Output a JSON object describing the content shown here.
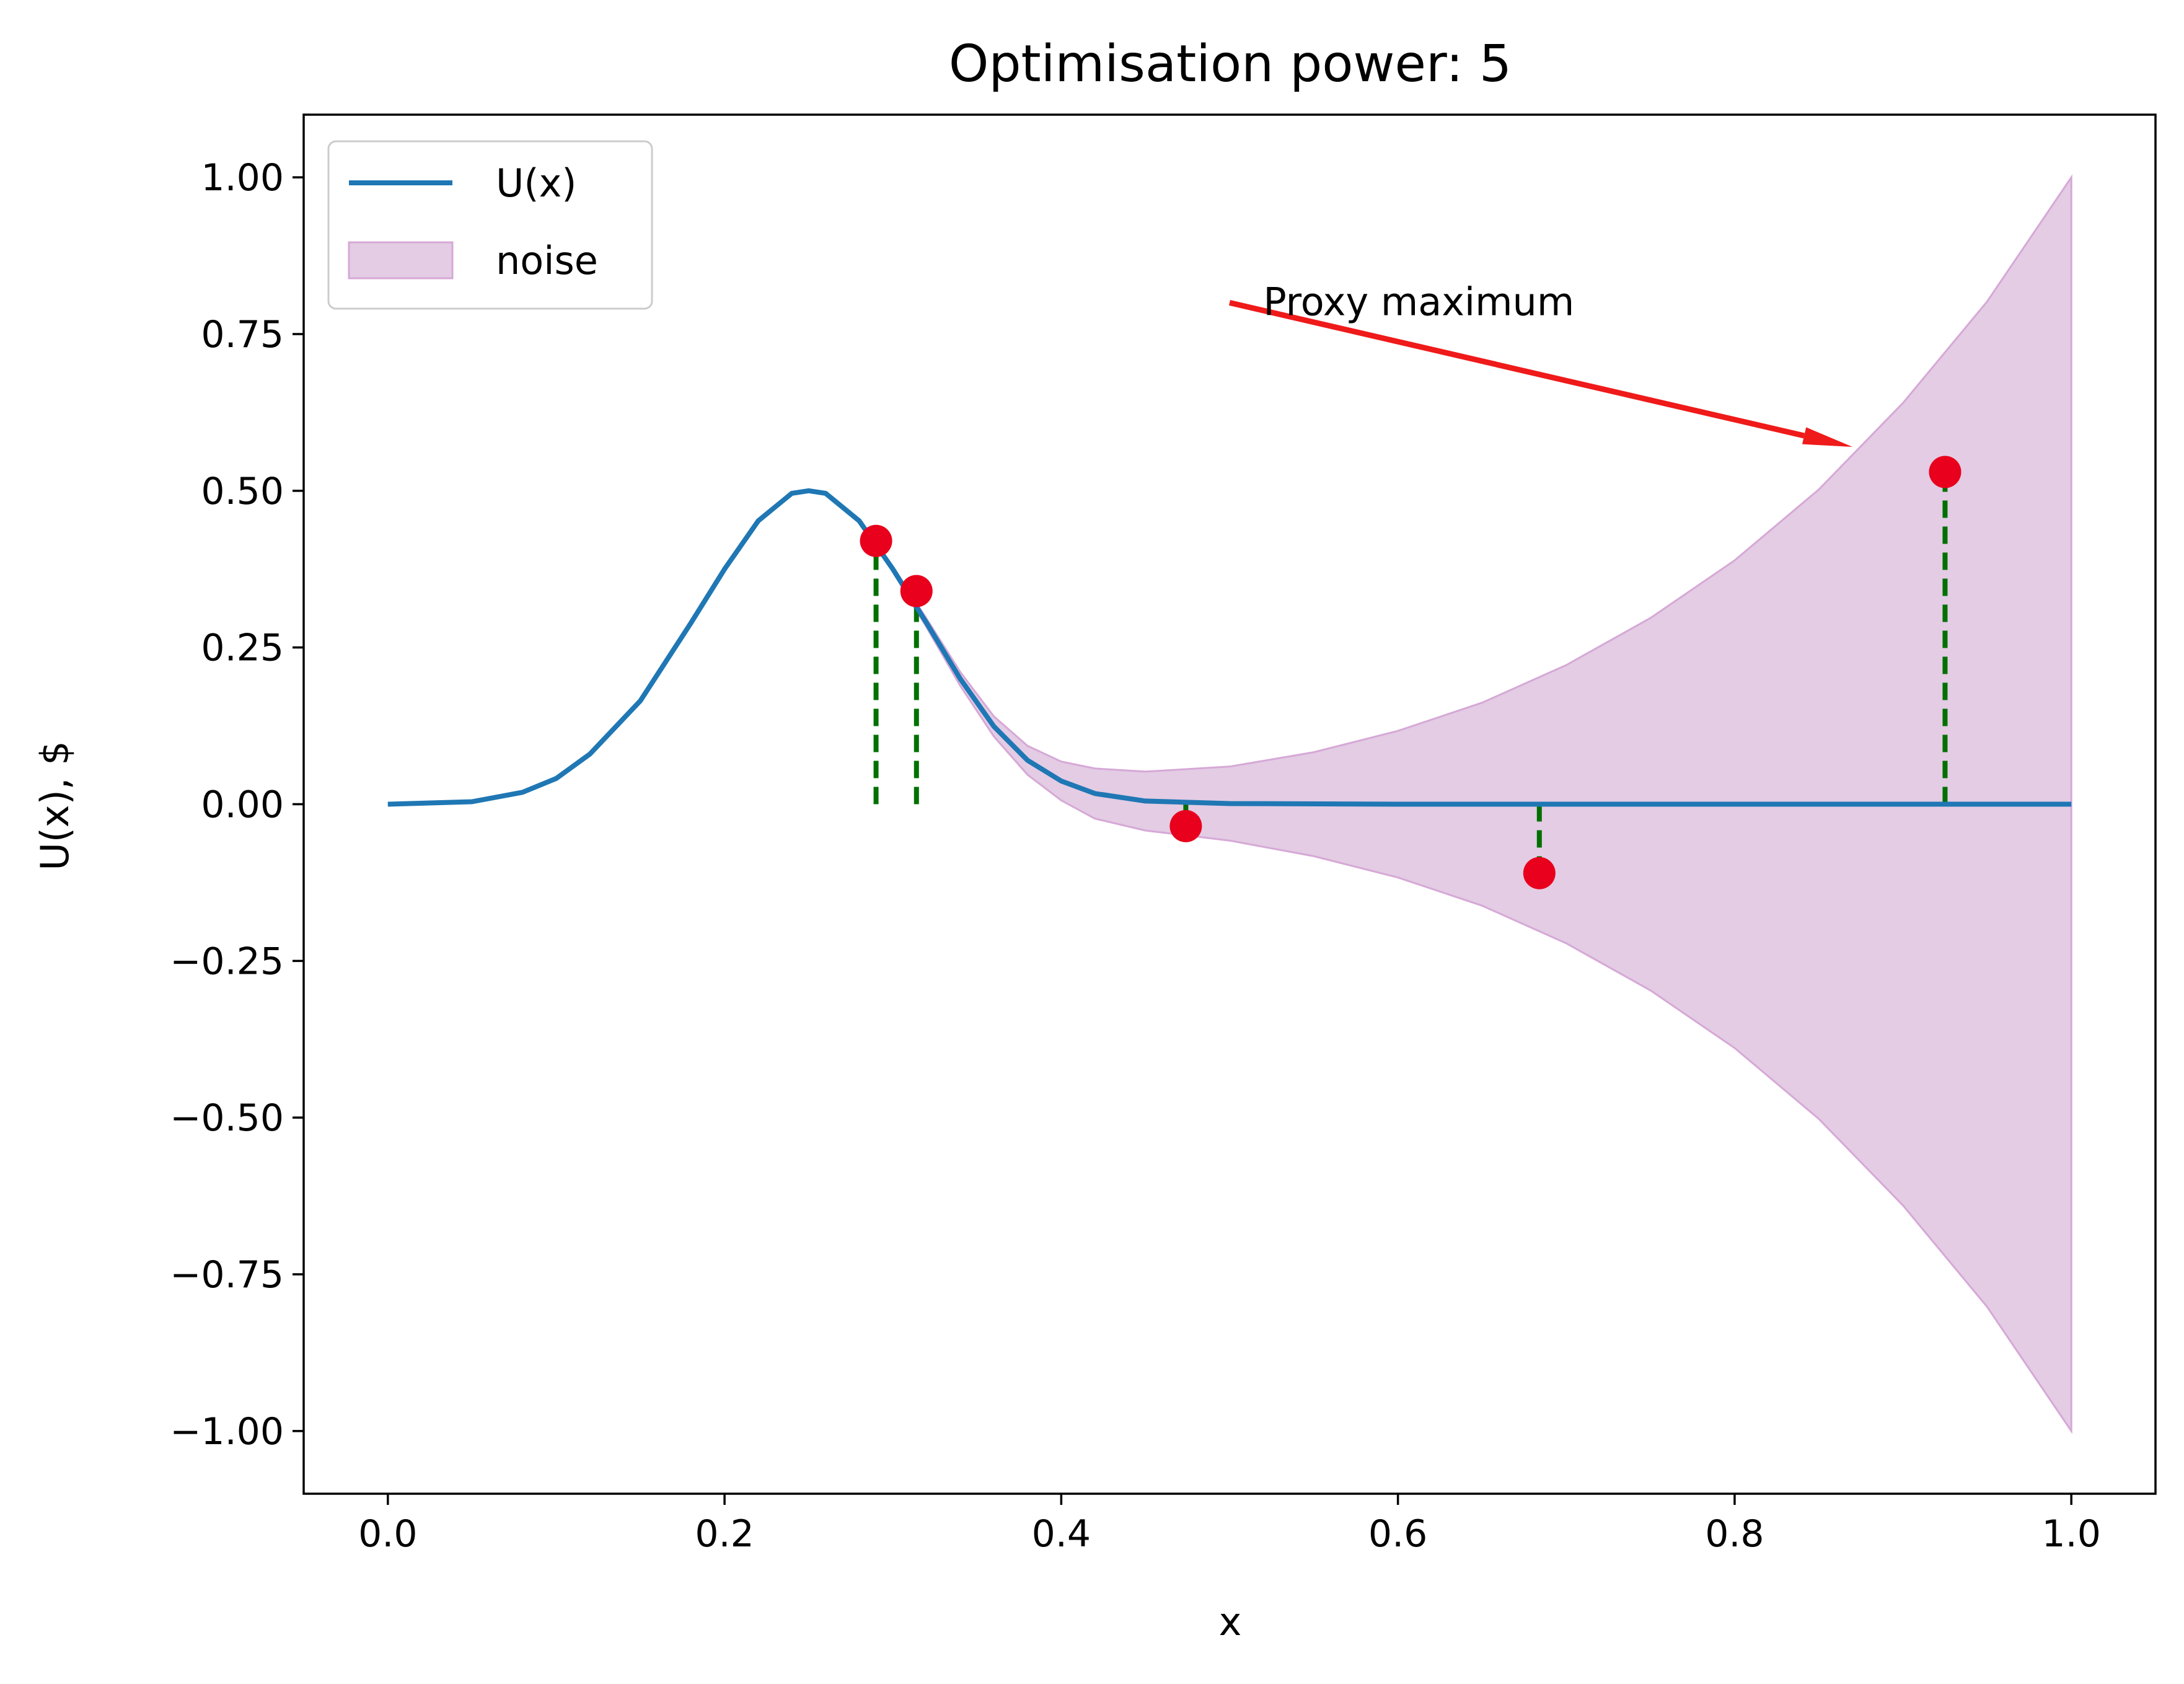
{
  "chart_data": {
    "type": "line",
    "title": "Optimisation power: 5",
    "xlabel": "x",
    "ylabel": "U(x), $",
    "xlim": [
      -0.05,
      1.05
    ],
    "ylim": [
      -1.1,
      1.1
    ],
    "xticks": [
      0.0,
      0.2,
      0.4,
      0.6,
      0.8,
      1.0
    ],
    "xtick_labels": [
      "0.0",
      "0.2",
      "0.4",
      "0.6",
      "0.8",
      "1.0"
    ],
    "yticks": [
      1.0,
      0.75,
      0.5,
      0.25,
      0.0,
      -0.25,
      -0.5,
      -0.75,
      -1.0
    ],
    "ytick_labels": [
      "1.00",
      "0.75",
      "0.50",
      "0.25",
      "0.00",
      "−0.25",
      "−0.50",
      "−0.75",
      "−1.00"
    ],
    "grid": false,
    "legend": {
      "placement": "top-left",
      "entries": [
        {
          "label": "U(x)",
          "kind": "line",
          "color": "#1f77b4"
        },
        {
          "label": "noise",
          "kind": "patch",
          "color": "#e3cce4",
          "edge": "#d6a8d6"
        }
      ]
    },
    "series": [
      {
        "name": "U(x)",
        "type": "line",
        "color": "#1f77b4",
        "x": [
          0.0,
          0.05,
          0.08,
          0.1,
          0.12,
          0.15,
          0.18,
          0.2,
          0.22,
          0.24,
          0.25,
          0.26,
          0.28,
          0.3,
          0.32,
          0.34,
          0.36,
          0.38,
          0.4,
          0.42,
          0.45,
          0.5,
          0.6,
          0.7,
          0.8,
          0.9,
          1.0
        ],
        "y": [
          0.0,
          0.004,
          0.019,
          0.041,
          0.08,
          0.165,
          0.289,
          0.375,
          0.452,
          0.496,
          0.5,
          0.496,
          0.452,
          0.375,
          0.289,
          0.2,
          0.124,
          0.07,
          0.037,
          0.017,
          0.005,
          0.001,
          0.0,
          0.0,
          0.0,
          0.0,
          0.0
        ]
      }
    ],
    "noise_band": {
      "name": "noise",
      "color": "#e3cce4",
      "edge_color": "#d6a8d6",
      "x": [
        0.28,
        0.3,
        0.32,
        0.34,
        0.36,
        0.38,
        0.4,
        0.42,
        0.45,
        0.5,
        0.55,
        0.6,
        0.65,
        0.7,
        0.75,
        0.8,
        0.85,
        0.9,
        0.95,
        1.0
      ],
      "upper": [
        0.452,
        0.379,
        0.296,
        0.211,
        0.14,
        0.093,
        0.068,
        0.057,
        0.052,
        0.06,
        0.083,
        0.117,
        0.162,
        0.222,
        0.297,
        0.389,
        0.502,
        0.64,
        0.802,
        1.0
      ],
      "lower": [
        0.452,
        0.371,
        0.282,
        0.189,
        0.108,
        0.047,
        0.006,
        -0.023,
        -0.042,
        -0.058,
        -0.083,
        -0.117,
        -0.162,
        -0.222,
        -0.297,
        -0.389,
        -0.502,
        -0.64,
        -0.802,
        -1.0
      ]
    },
    "samples": {
      "color": "#e8001c",
      "stem_color": "#007000",
      "points": [
        {
          "x": 0.29,
          "y": 0.42,
          "base": 0.0
        },
        {
          "x": 0.314,
          "y": 0.34,
          "base": 0.0
        },
        {
          "x": 0.474,
          "y": -0.035,
          "base": 0.0
        },
        {
          "x": 0.684,
          "y": -0.11,
          "base": 0.0
        },
        {
          "x": 0.925,
          "y": 0.53,
          "base": 0.0
        }
      ]
    },
    "annotation": {
      "text": "Proxy maximum",
      "color": "#ef1a1a",
      "arrow_from": [
        0.5,
        0.8
      ],
      "arrow_to": [
        0.87,
        0.57
      ],
      "text_at": [
        0.52,
        0.8
      ]
    }
  }
}
